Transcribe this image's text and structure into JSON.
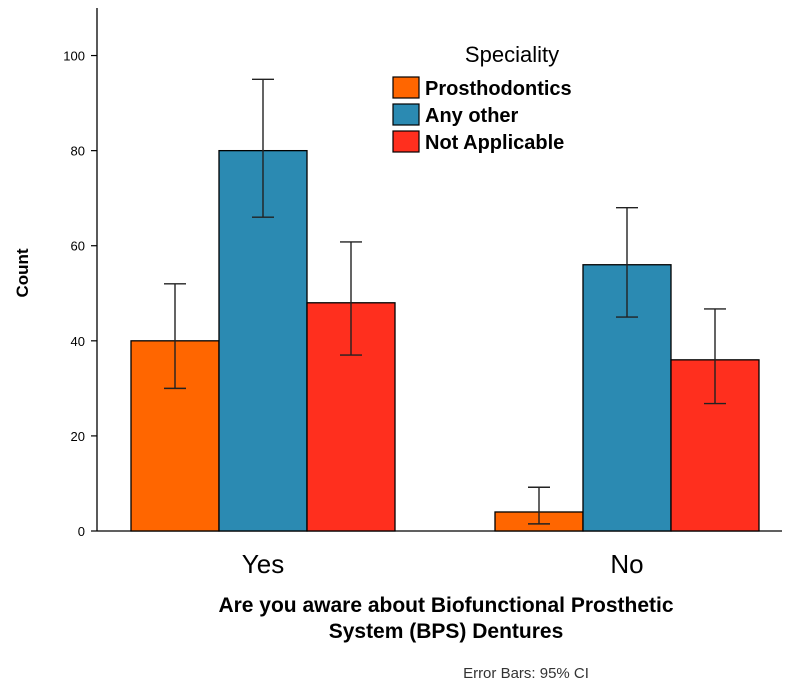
{
  "chart_data": {
    "type": "bar",
    "categories": [
      "Yes",
      "No"
    ],
    "series": [
      {
        "name": "Prosthodontics",
        "color": "#ff6600",
        "values": [
          40,
          4
        ],
        "ci_low": [
          30,
          1.5
        ],
        "ci_high": [
          52,
          9.2
        ]
      },
      {
        "name": "Any other",
        "color": "#2b8ab2",
        "values": [
          80,
          56
        ],
        "ci_low": [
          66,
          45
        ],
        "ci_high": [
          95,
          68
        ]
      },
      {
        "name": "Not Applicable",
        "color": "#ff2f1e",
        "values": [
          48,
          36
        ],
        "ci_low": [
          37,
          26.8
        ],
        "ci_high": [
          60.8,
          46.7
        ]
      }
    ],
    "ylabel": "Count",
    "xlabel_lines": [
      "Are you aware about Biofunctional Prosthetic",
      "System (BPS) Dentures"
    ],
    "ylim": [
      0,
      110
    ],
    "yticks": [
      0,
      20,
      40,
      60,
      80,
      100
    ],
    "legend": {
      "title": "Speciality",
      "position": "top-right"
    },
    "footnote": "Error Bars: 95% CI",
    "grid": false
  }
}
